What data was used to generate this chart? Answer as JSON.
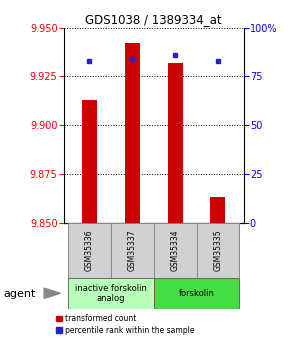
{
  "title": "GDS1038 / 1389334_at",
  "samples": [
    "GSM35336",
    "GSM35337",
    "GSM35334",
    "GSM35335"
  ],
  "bar_bottom": 9.85,
  "red_values": [
    9.913,
    9.942,
    9.932,
    9.863
  ],
  "blue_values_pct": [
    83,
    84,
    86,
    83
  ],
  "ylim_left": [
    9.85,
    9.95
  ],
  "ylim_right": [
    0,
    100
  ],
  "yticks_left": [
    9.85,
    9.875,
    9.9,
    9.925,
    9.95
  ],
  "yticks_right": [
    0,
    25,
    50,
    75,
    100
  ],
  "ytick_right_labels": [
    "0",
    "25",
    "50",
    "75",
    "100%"
  ],
  "groups": [
    {
      "label": "inactive forskolin\nanalog",
      "color": "#b8ffb8",
      "span": [
        0,
        2
      ]
    },
    {
      "label": "forskolin",
      "color": "#44dd44",
      "span": [
        2,
        4
      ]
    }
  ],
  "bar_color": "#cc0000",
  "dot_color": "#2222cc",
  "bar_width": 0.35,
  "legend_red_label": "transformed count",
  "legend_blue_label": "percentile rank within the sample",
  "agent_label": "agent",
  "background_color": "#ffffff"
}
